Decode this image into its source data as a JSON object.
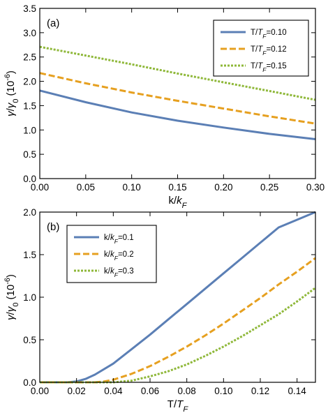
{
  "chart_data": [
    {
      "type": "line",
      "panel_label": "(a)",
      "xlabel": "k/k_F",
      "ylabel": "γ/γ0 (10^-6)",
      "xlim": [
        0.0,
        0.3
      ],
      "ylim": [
        0.0,
        3.5
      ],
      "x_ticks": [
        "0.00",
        "0.05",
        "0.10",
        "0.15",
        "0.20",
        "0.25",
        "0.30"
      ],
      "y_ticks": [
        "0.0",
        "0.5",
        "1.0",
        "1.5",
        "2.0",
        "2.5",
        "3.0",
        "3.5"
      ],
      "grid": false,
      "legend_position": "top-right",
      "series": [
        {
          "name": "T/T_F=0.10",
          "color": "#5b7fb5",
          "dash": "solid",
          "x": [
            0.0,
            0.05,
            0.1,
            0.15,
            0.2,
            0.25,
            0.3
          ],
          "y": [
            1.81,
            1.57,
            1.36,
            1.19,
            1.05,
            0.92,
            0.81
          ]
        },
        {
          "name": "T/T_F=0.12",
          "color": "#e6a020",
          "dash": "dashed",
          "x": [
            0.0,
            0.05,
            0.1,
            0.15,
            0.2,
            0.25,
            0.3
          ],
          "y": [
            2.17,
            1.96,
            1.77,
            1.6,
            1.44,
            1.28,
            1.13
          ]
        },
        {
          "name": "T/T_F=0.15",
          "color": "#8fb83a",
          "dash": "dotted",
          "x": [
            0.0,
            0.05,
            0.1,
            0.15,
            0.2,
            0.25,
            0.3
          ],
          "y": [
            2.71,
            2.53,
            2.35,
            2.16,
            1.98,
            1.8,
            1.62
          ]
        }
      ]
    },
    {
      "type": "line",
      "panel_label": "(b)",
      "xlabel": "T/T_F",
      "ylabel": "γ/γ0 (10^-6)",
      "xlim": [
        0.0,
        0.15
      ],
      "ylim": [
        0.0,
        2.0
      ],
      "x_ticks": [
        "0.00",
        "0.02",
        "0.04",
        "0.06",
        "0.08",
        "0.10",
        "0.12",
        "0.14"
      ],
      "y_ticks": [
        "0.0",
        "0.5",
        "1.0",
        "1.5",
        "2.0"
      ],
      "grid": false,
      "legend_position": "top-left",
      "series": [
        {
          "name": "k/k_F=0.1",
          "color": "#5b7fb5",
          "dash": "solid",
          "x": [
            0.0,
            0.01,
            0.015,
            0.02,
            0.025,
            0.03,
            0.04,
            0.05,
            0.06,
            0.07,
            0.08,
            0.09,
            0.1,
            0.11,
            0.12,
            0.13,
            0.14,
            0.15
          ],
          "y": [
            0.0,
            0.0,
            0.0,
            0.01,
            0.04,
            0.09,
            0.22,
            0.39,
            0.56,
            0.74,
            0.92,
            1.1,
            1.28,
            1.46,
            1.64,
            1.82,
            1.91,
            2.0
          ]
        },
        {
          "name": "k/k_F=0.2",
          "color": "#e6a020",
          "dash": "dashed",
          "x": [
            0.0,
            0.02,
            0.03,
            0.035,
            0.04,
            0.05,
            0.06,
            0.07,
            0.08,
            0.09,
            0.1,
            0.11,
            0.12,
            0.13,
            0.14,
            0.15
          ],
          "y": [
            0.0,
            0.0,
            0.0,
            0.01,
            0.03,
            0.1,
            0.19,
            0.3,
            0.42,
            0.55,
            0.69,
            0.84,
            0.99,
            1.15,
            1.3,
            1.46
          ]
        },
        {
          "name": "k/k_F=0.3",
          "color": "#8fb83a",
          "dash": "dotted",
          "x": [
            0.0,
            0.03,
            0.04,
            0.045,
            0.05,
            0.06,
            0.07,
            0.08,
            0.09,
            0.1,
            0.11,
            0.12,
            0.13,
            0.14,
            0.15
          ],
          "y": [
            0.0,
            0.0,
            0.0,
            0.01,
            0.02,
            0.07,
            0.13,
            0.21,
            0.31,
            0.42,
            0.54,
            0.67,
            0.8,
            0.95,
            1.11
          ]
        }
      ]
    }
  ]
}
